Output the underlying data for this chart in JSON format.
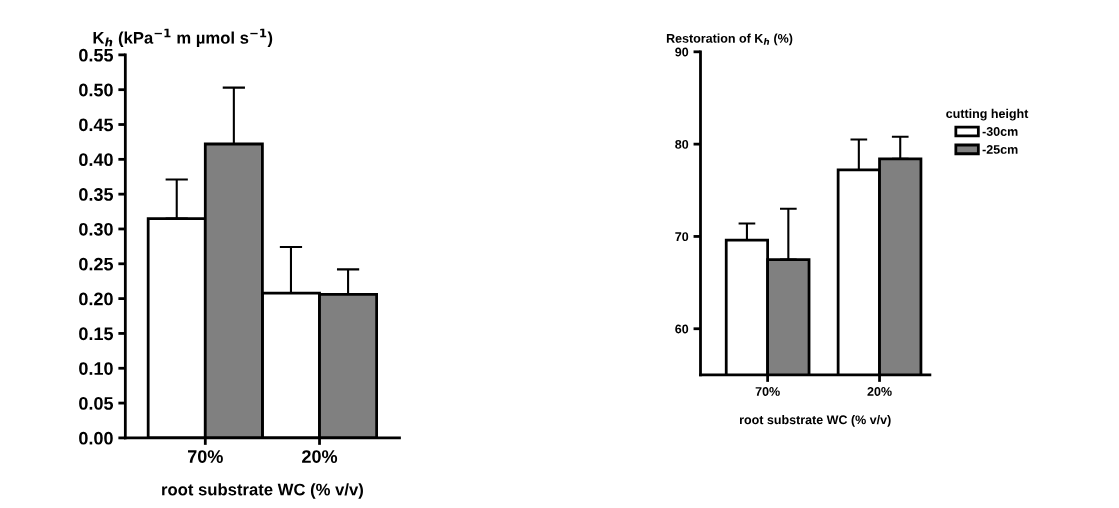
{
  "chart_data": [
    {
      "type": "bar",
      "ylabel": "K$_{h}$ (kPa$^{−1}$ m µmol s$^{−1}$)",
      "xlabel": "root substrate WC (% v/v)",
      "categories": [
        "70%",
        "20%"
      ],
      "series": [
        {
          "color": "#ffffff",
          "values": [
            0.315,
            0.208
          ],
          "errors": [
            [
              0.315,
              0.371
            ],
            [
              0.208,
              0.274
            ]
          ]
        },
        {
          "color": "#808080",
          "values": [
            0.422,
            0.206
          ],
          "errors": [
            [
              0.422,
              0.503
            ],
            [
              0.206,
              0.242
            ]
          ]
        }
      ],
      "ylim": [
        0,
        0.55
      ],
      "yticks": [
        {
          "value": 0,
          "label": "0.00"
        },
        0.05,
        {
          "value": 0.1,
          "label": "0.10"
        },
        0.15,
        {
          "value": 0.2,
          "label": "0.20"
        },
        0.25,
        {
          "value": 0.3,
          "label": "0.30"
        },
        0.35,
        {
          "value": 0.4,
          "label": "0.40"
        },
        0.45,
        {
          "value": 0.5,
          "label": "0.50"
        },
        0.55
      ],
      "grid": false,
      "legend": false
    },
    {
      "type": "bar",
      "ylabel": "Restoration of K$_{h}$ (%)",
      "xlabel": "root substrate WC (% v/v)",
      "legend_title": "cutting height",
      "categories": [
        "70%",
        "20%"
      ],
      "series": [
        {
          "name": "-30cm",
          "color": "#ffffff",
          "values": [
            69.6,
            77.2
          ],
          "errors": [
            [
              69.6,
              71.4
            ],
            [
              77.2,
              80.5
            ]
          ]
        },
        {
          "name": "-25cm",
          "color": "#808080",
          "values": [
            67.5,
            78.4
          ],
          "errors": [
            [
              67.5,
              73.0
            ],
            [
              78.4,
              80.8
            ]
          ]
        }
      ],
      "ylim": [
        55,
        90
      ],
      "yticks": [
        60,
        70,
        80,
        90
      ],
      "grid": false,
      "legend": "right"
    }
  ]
}
